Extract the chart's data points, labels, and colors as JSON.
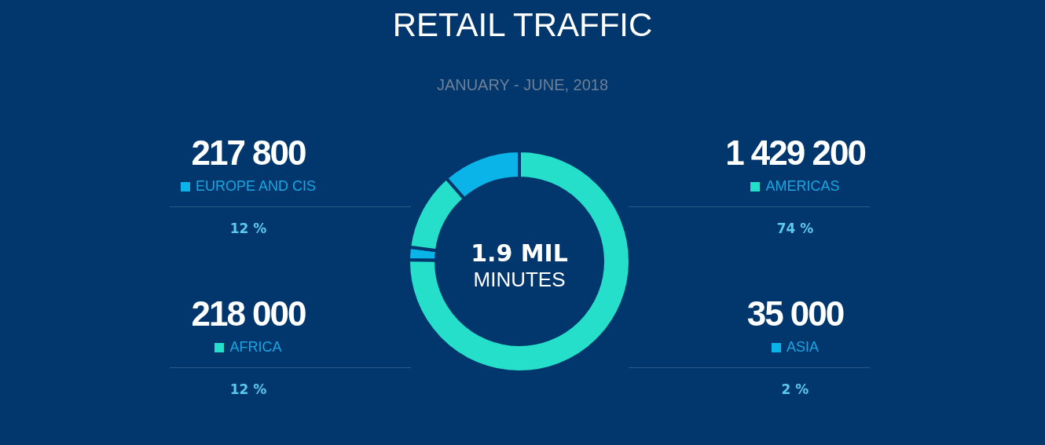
{
  "chart_data": {
    "type": "donut",
    "title": "RETAIL TRAFFIC",
    "subtitle": "JANUARY - JUNE, 2018",
    "categories": [
      "AMERICAS",
      "ASIA",
      "AFRICA",
      "EUROPE AND CIS"
    ],
    "values": [
      1429200,
      35000,
      218000,
      217800
    ],
    "value_labels": [
      "1 429 200",
      "35 000",
      "218 000",
      "217 800"
    ],
    "colors": [
      "#26dfcb",
      "#0ab4e8",
      "#26dfcb",
      "#0ab4e8"
    ],
    "annotations": [
      "74 %",
      "2 %",
      "12 %",
      "12 %",
      "1.9 MIL",
      "MINUTES"
    ],
    "legend": "right"
  }
}
